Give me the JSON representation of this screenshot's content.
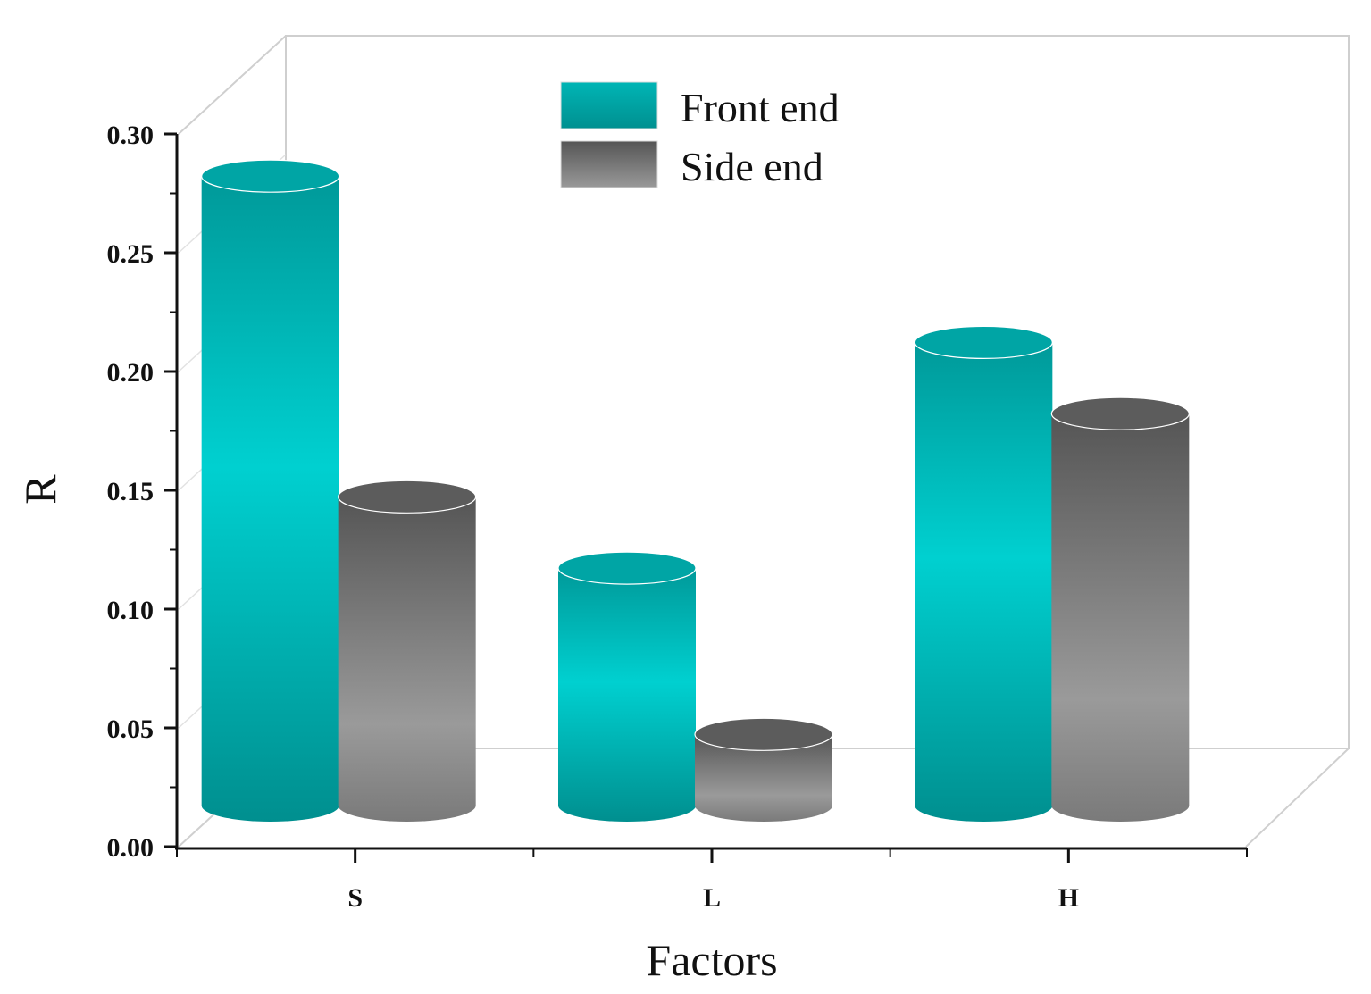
{
  "chart_data": {
    "type": "bar",
    "style": "3d-cylinder",
    "categories": [
      "S",
      "L",
      "H"
    ],
    "series": [
      {
        "name": "Front end",
        "values": [
          0.28,
          0.115,
          0.21
        ],
        "color": "#00BFBF"
      },
      {
        "name": "Side end",
        "values": [
          0.145,
          0.045,
          0.18
        ],
        "color": "#777777"
      }
    ],
    "xlabel": "Factors",
    "ylabel": "R",
    "ylim": [
      0,
      0.3
    ],
    "yticks": [
      "0.00",
      "0.05",
      "0.10",
      "0.15",
      "0.20",
      "0.25",
      "0.30"
    ],
    "legend_position": "top-center",
    "grid": false
  }
}
